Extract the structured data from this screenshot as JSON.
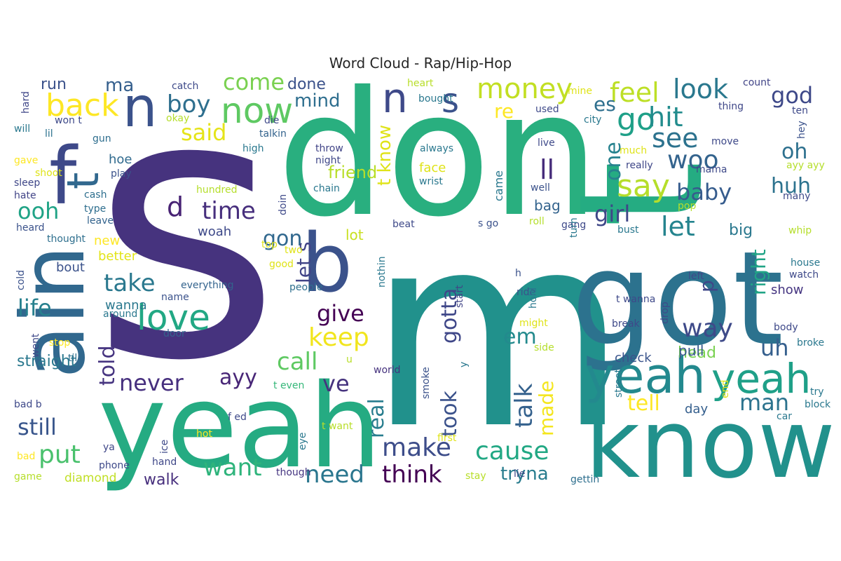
{
  "title": "Word Cloud - Rap/Hip-Hop",
  "chart_data": {
    "type": "wordcloud",
    "title": "Word Cloud - Rap/Hip-Hop",
    "colormap": "viridis",
    "background": "#ffffff",
    "words": [
      {
        "text": "s",
        "weight": 100,
        "color": "#46337e"
      },
      {
        "text": "m",
        "weight": 96,
        "color": "#21918c"
      },
      {
        "text": "don",
        "weight": 74,
        "color": "#29af7f"
      },
      {
        "text": "t",
        "weight": 72,
        "color": "#25ac82"
      },
      {
        "text": "got",
        "weight": 62,
        "color": "#2c728e"
      },
      {
        "text": "yeah",
        "weight": 60,
        "color": "#25ab82"
      },
      {
        "text": "know",
        "weight": 52,
        "color": "#21918c"
      },
      {
        "text": "ain",
        "weight": 50,
        "color": "#31688e"
      },
      {
        "text": "b",
        "weight": 44,
        "color": "#3b528b"
      },
      {
        "text": "n",
        "weight": 42,
        "color": "#3e4989"
      },
      {
        "text": "t",
        "weight": 40,
        "color": "#31688e"
      },
      {
        "text": "f",
        "weight": 40,
        "color": "#3e4989"
      },
      {
        "text": "yeah",
        "weight": 34,
        "color": "#23898e"
      },
      {
        "text": "yeah",
        "weight": 30,
        "color": "#1fa088"
      },
      {
        "text": "now",
        "weight": 26,
        "color": "#5ec962"
      },
      {
        "text": "love",
        "weight": 26,
        "color": "#22a884"
      },
      {
        "text": "back",
        "weight": 24,
        "color": "#fde725"
      },
      {
        "text": "n",
        "weight": 24,
        "color": "#3b528b"
      },
      {
        "text": "s",
        "weight": 24,
        "color": "#3b528b"
      },
      {
        "text": "go",
        "weight": 24,
        "color": "#1fa088"
      },
      {
        "text": "say",
        "weight": 24,
        "color": "#b5de2b"
      },
      {
        "text": "money",
        "weight": 22,
        "color": "#c2df23"
      },
      {
        "text": "feel",
        "weight": 22,
        "color": "#bddf26"
      },
      {
        "text": "look",
        "weight": 22,
        "color": "#2a788e"
      },
      {
        "text": "come",
        "weight": 22,
        "color": "#7ad151"
      },
      {
        "text": "time",
        "weight": 22,
        "color": "#472f7d"
      },
      {
        "text": "boy",
        "weight": 22,
        "color": "#2e6f8e"
      },
      {
        "text": "said",
        "weight": 20,
        "color": "#e5e419"
      },
      {
        "text": "d",
        "weight": 20,
        "color": "#482374"
      },
      {
        "text": "hit",
        "weight": 20,
        "color": "#228c8d"
      },
      {
        "text": "see",
        "weight": 20,
        "color": "#2c728e"
      },
      {
        "text": "woo",
        "weight": 20,
        "color": "#33638d"
      },
      {
        "text": "let",
        "weight": 20,
        "color": "#25848e"
      },
      {
        "text": "baby",
        "weight": 20,
        "color": "#365c8d"
      },
      {
        "text": "god",
        "weight": 20,
        "color": "#3e4989"
      },
      {
        "text": "oh",
        "weight": 20,
        "color": "#2d708e"
      },
      {
        "text": "huh",
        "weight": 18,
        "color": "#2c728e"
      },
      {
        "text": "girl",
        "weight": 18,
        "color": "#3f4788"
      },
      {
        "text": "gon",
        "weight": 18,
        "color": "#31688e"
      },
      {
        "text": "take",
        "weight": 18,
        "color": "#2a788e"
      },
      {
        "text": "life",
        "weight": 18,
        "color": "#27808e"
      },
      {
        "text": "ooh",
        "weight": 18,
        "color": "#20a386"
      },
      {
        "text": "keep",
        "weight": 18,
        "color": "#f1e51d"
      },
      {
        "text": "give",
        "weight": 18,
        "color": "#440154"
      },
      {
        "text": "way",
        "weight": 18,
        "color": "#3e4a89"
      },
      {
        "text": "uh",
        "weight": 18,
        "color": "#355f8d"
      },
      {
        "text": "call",
        "weight": 18,
        "color": "#5ec962"
      },
      {
        "text": "never",
        "weight": 18,
        "color": "#462f7e"
      },
      {
        "text": "ayy",
        "weight": 18,
        "color": "#482677"
      },
      {
        "text": "still",
        "weight": 18,
        "color": "#39568c"
      },
      {
        "text": "put",
        "weight": 18,
        "color": "#4ac16d"
      },
      {
        "text": "want",
        "weight": 18,
        "color": "#2fb47c"
      },
      {
        "text": "make",
        "weight": 18,
        "color": "#3d4d8a"
      },
      {
        "text": "need",
        "weight": 18,
        "color": "#2a768e"
      },
      {
        "text": "think",
        "weight": 18,
        "color": "#440154"
      },
      {
        "text": "cause",
        "weight": 18,
        "color": "#22a884"
      },
      {
        "text": "man",
        "weight": 18,
        "color": "#2c738e"
      },
      {
        "text": "tell",
        "weight": 18,
        "color": "#fde725"
      },
      {
        "text": "talk",
        "weight": 18,
        "color": "#34618d"
      },
      {
        "text": "took",
        "weight": 18,
        "color": "#3b528b"
      },
      {
        "text": "gotta",
        "weight": 18,
        "color": "#3f4788"
      },
      {
        "text": "real",
        "weight": 18,
        "color": "#287d8e"
      },
      {
        "text": "ve",
        "weight": 18,
        "color": "#46337e"
      },
      {
        "text": "em",
        "weight": 16,
        "color": "#238a8d"
      },
      {
        "text": "ll",
        "weight": 16,
        "color": "#472d7b"
      },
      {
        "text": "one",
        "weight": 16,
        "color": "#26828e"
      },
      {
        "text": "right",
        "weight": 16,
        "color": "#20a486"
      },
      {
        "text": "p",
        "weight": 16,
        "color": "#3f4788"
      },
      {
        "text": "told",
        "weight": 16,
        "color": "#463480"
      },
      {
        "text": "let s",
        "weight": 16,
        "color": "#414487"
      },
      {
        "text": "t know",
        "weight": 16,
        "color": "#dfe318"
      },
      {
        "text": "made",
        "weight": 16,
        "color": "#f4e61e"
      },
      {
        "text": "tryna",
        "weight": 16,
        "color": "#287c8e"
      },
      {
        "text": "walk",
        "weight": 14,
        "color": "#472f7d"
      },
      {
        "text": "big",
        "weight": 14,
        "color": "#2a788e"
      },
      {
        "text": "head",
        "weight": 14,
        "color": "#7ad151"
      },
      {
        "text": "straight",
        "weight": 14,
        "color": "#2a788e"
      },
      {
        "text": "pull",
        "weight": 14,
        "color": "#38588c"
      },
      {
        "text": "mind",
        "weight": 14,
        "color": "#2e6e8e"
      },
      {
        "text": "ma",
        "weight": 14,
        "color": "#355f8d"
      },
      {
        "text": "es",
        "weight": 14,
        "color": "#2e6f8e"
      },
      {
        "text": "re",
        "weight": 14,
        "color": "#fde725"
      },
      {
        "text": "friend",
        "weight": 12,
        "color": "#b8de29"
      },
      {
        "text": "done",
        "weight": 12,
        "color": "#3b528b"
      },
      {
        "text": "run",
        "weight": 12,
        "color": "#3b528b"
      },
      {
        "text": "hoe",
        "weight": 12,
        "color": "#306a8e"
      },
      {
        "text": "new",
        "weight": 12,
        "color": "#fde725"
      },
      {
        "text": "wanna",
        "weight": 12,
        "color": "#2a788e"
      },
      {
        "text": "bout",
        "weight": 12,
        "color": "#3b528b"
      },
      {
        "text": "better",
        "weight": 12,
        "color": "#e2e418"
      },
      {
        "text": "woah",
        "weight": 12,
        "color": "#3e4989"
      },
      {
        "text": "face",
        "weight": 12,
        "color": "#dfe318"
      },
      {
        "text": "lot",
        "weight": 12,
        "color": "#c8e020"
      },
      {
        "text": "bag",
        "weight": 12,
        "color": "#33638d"
      },
      {
        "text": "day",
        "weight": 12,
        "color": "#355f8d"
      },
      {
        "text": "show",
        "weight": 11,
        "color": "#453581"
      },
      {
        "text": "diamond",
        "weight": 11,
        "color": "#c0df25"
      },
      {
        "text": "came",
        "weight": 11,
        "color": "#2a788e"
      },
      {
        "text": "check",
        "weight": 10,
        "color": "#3a548c"
      },
      {
        "text": "catch",
        "weight": 10,
        "color": "#3e4a89"
      },
      {
        "text": "heart",
        "weight": 10,
        "color": "#b8de29"
      },
      {
        "text": "count",
        "weight": 10,
        "color": "#414487"
      },
      {
        "text": "hard",
        "weight": 10,
        "color": "#3f4788"
      },
      {
        "text": "won t",
        "weight": 10,
        "color": "#3e4989"
      },
      {
        "text": "lil",
        "weight": 10,
        "color": "#2c728e"
      },
      {
        "text": "will",
        "weight": 10,
        "color": "#2a788e"
      },
      {
        "text": "okay",
        "weight": 10,
        "color": "#b5de2b"
      },
      {
        "text": "gun",
        "weight": 10,
        "color": "#2e6e8e"
      },
      {
        "text": "gave",
        "weight": 10,
        "color": "#fde725"
      },
      {
        "text": "shoot",
        "weight": 10,
        "color": "#dfe318"
      },
      {
        "text": "play",
        "weight": 10,
        "color": "#3b528b"
      },
      {
        "text": "sleep",
        "weight": 10,
        "color": "#3f4788"
      },
      {
        "text": "hate",
        "weight": 10,
        "color": "#414487"
      },
      {
        "text": "cash",
        "weight": 10,
        "color": "#2e6f8e"
      },
      {
        "text": "type",
        "weight": 10,
        "color": "#2e6e8e"
      },
      {
        "text": "leave",
        "weight": 10,
        "color": "#33638d"
      },
      {
        "text": "heard",
        "weight": 10,
        "color": "#3b528b"
      },
      {
        "text": "thought",
        "weight": 10,
        "color": "#2e6f8e"
      },
      {
        "text": "cold",
        "weight": 10,
        "color": "#3b528b"
      },
      {
        "text": "everything",
        "weight": 10,
        "color": "#33638d"
      },
      {
        "text": "name",
        "weight": 10,
        "color": "#3b528b"
      },
      {
        "text": "around",
        "weight": 10,
        "color": "#2a788e"
      },
      {
        "text": "door",
        "weight": 10,
        "color": "#33638d"
      },
      {
        "text": "went",
        "weight": 10,
        "color": "#3e4989"
      },
      {
        "text": "stop",
        "weight": 10,
        "color": "#fde725"
      },
      {
        "text": "til",
        "weight": 10,
        "color": "#2e6e8e"
      },
      {
        "text": "bad b",
        "weight": 10,
        "color": "#3e4989"
      },
      {
        "text": "f ed",
        "weight": 10,
        "color": "#3e4989"
      },
      {
        "text": "t even",
        "weight": 10,
        "color": "#35b779"
      },
      {
        "text": "hot",
        "weight": 10,
        "color": "#fde725"
      },
      {
        "text": "ya",
        "weight": 10,
        "color": "#3f4788"
      },
      {
        "text": "bad",
        "weight": 10,
        "color": "#fde725"
      },
      {
        "text": "phone",
        "weight": 10,
        "color": "#3e4989"
      },
      {
        "text": "ice",
        "weight": 10,
        "color": "#3e4989"
      },
      {
        "text": "hand",
        "weight": 10,
        "color": "#3f4788"
      },
      {
        "text": "game",
        "weight": 10,
        "color": "#b5de2b"
      },
      {
        "text": "though",
        "weight": 10,
        "color": "#453581"
      },
      {
        "text": "eye",
        "weight": 10,
        "color": "#2a788e"
      },
      {
        "text": "t want",
        "weight": 10,
        "color": "#b8de29"
      },
      {
        "text": "first",
        "weight": 10,
        "color": "#dfe318"
      },
      {
        "text": "stay",
        "weight": 10,
        "color": "#b8de29"
      },
      {
        "text": "lie",
        "weight": 10,
        "color": "#3e4989"
      },
      {
        "text": "gettin",
        "weight": 10,
        "color": "#2e6f8e"
      },
      {
        "text": "die",
        "weight": 10,
        "color": "#3e4989"
      },
      {
        "text": "talkin",
        "weight": 10,
        "color": "#33638d"
      },
      {
        "text": "high",
        "weight": 10,
        "color": "#2a788e"
      },
      {
        "text": "throw",
        "weight": 10,
        "color": "#414487"
      },
      {
        "text": "night",
        "weight": 10,
        "color": "#3f4788"
      },
      {
        "text": "chain",
        "weight": 10,
        "color": "#2a788e"
      },
      {
        "text": "hundred",
        "weight": 10,
        "color": "#b5de2b"
      },
      {
        "text": "doin",
        "weight": 10,
        "color": "#3e4989"
      },
      {
        "text": "top",
        "weight": 10,
        "color": "#dfe318"
      },
      {
        "text": "two",
        "weight": 10,
        "color": "#dfe318"
      },
      {
        "text": "good",
        "weight": 10,
        "color": "#dfe318"
      },
      {
        "text": "people",
        "weight": 10,
        "color": "#2e6f8e"
      },
      {
        "text": "nothin",
        "weight": 10,
        "color": "#2a788e"
      },
      {
        "text": "start",
        "weight": 10,
        "color": "#414487"
      },
      {
        "text": "u",
        "weight": 10,
        "color": "#b8de29"
      },
      {
        "text": "world",
        "weight": 10,
        "color": "#46337e"
      },
      {
        "text": "smoke",
        "weight": 10,
        "color": "#3b528b"
      },
      {
        "text": "y",
        "weight": 10,
        "color": "#2a788e"
      },
      {
        "text": "bought",
        "weight": 10,
        "color": "#2a788e"
      },
      {
        "text": "always",
        "weight": 10,
        "color": "#2a788e"
      },
      {
        "text": "wrist",
        "weight": 10,
        "color": "#2a788e"
      },
      {
        "text": "beat",
        "weight": 10,
        "color": "#3e4989"
      },
      {
        "text": "s go",
        "weight": 10,
        "color": "#3b528b"
      },
      {
        "text": "h",
        "weight": 10,
        "color": "#3b528b"
      },
      {
        "text": "ride",
        "weight": 10,
        "color": "#3b528b"
      },
      {
        "text": "hold",
        "weight": 10,
        "color": "#2a788e"
      },
      {
        "text": "might",
        "weight": 10,
        "color": "#dfe318"
      },
      {
        "text": "side",
        "weight": 10,
        "color": "#b5de2b"
      },
      {
        "text": "used",
        "weight": 10,
        "color": "#3e4989"
      },
      {
        "text": "mine",
        "weight": 10,
        "color": "#dfe318"
      },
      {
        "text": "live",
        "weight": 10,
        "color": "#3e4989"
      },
      {
        "text": "city",
        "weight": 10,
        "color": "#2a788e"
      },
      {
        "text": "much",
        "weight": 10,
        "color": "#dfe318"
      },
      {
        "text": "really",
        "weight": 10,
        "color": "#3f4788"
      },
      {
        "text": "well",
        "weight": 10,
        "color": "#3b528b"
      },
      {
        "text": "roll",
        "weight": 10,
        "color": "#b5de2b"
      },
      {
        "text": "gang",
        "weight": 10,
        "color": "#3e4989"
      },
      {
        "text": "turn",
        "weight": 10,
        "color": "#2a788e"
      },
      {
        "text": "bust",
        "weight": 10,
        "color": "#2a788e"
      },
      {
        "text": "thing",
        "weight": 10,
        "color": "#3f4788"
      },
      {
        "text": "ten",
        "weight": 10,
        "color": "#3e4989"
      },
      {
        "text": "hey",
        "weight": 10,
        "color": "#3b528b"
      },
      {
        "text": "move",
        "weight": 10,
        "color": "#3e4989"
      },
      {
        "text": "ayy ayy",
        "weight": 10,
        "color": "#b5de2b"
      },
      {
        "text": "mama",
        "weight": 10,
        "color": "#3e4989"
      },
      {
        "text": "many",
        "weight": 10,
        "color": "#3e4989"
      },
      {
        "text": "pop",
        "weight": 10,
        "color": "#b5de2b"
      },
      {
        "text": "whip",
        "weight": 10,
        "color": "#b5de2b"
      },
      {
        "text": "house",
        "weight": 10,
        "color": "#2a788e"
      },
      {
        "text": "left",
        "weight": 10,
        "color": "#3e4989"
      },
      {
        "text": "watch",
        "weight": 10,
        "color": "#3e4989"
      },
      {
        "text": "t wanna",
        "weight": 10,
        "color": "#3e4989"
      },
      {
        "text": "drop",
        "weight": 10,
        "color": "#3e4989"
      },
      {
        "text": "break",
        "weight": 10,
        "color": "#3e4989"
      },
      {
        "text": "body",
        "weight": 10,
        "color": "#3e4989"
      },
      {
        "text": "broke",
        "weight": 10,
        "color": "#2a788e"
      },
      {
        "text": "end",
        "weight": 10,
        "color": "#dfe318"
      },
      {
        "text": "try",
        "weight": 10,
        "color": "#2a788e"
      },
      {
        "text": "block",
        "weight": 10,
        "color": "#2a788e"
      },
      {
        "text": "street",
        "weight": 10,
        "color": "#2a788e"
      },
      {
        "text": "car",
        "weight": 10,
        "color": "#2a788e"
      }
    ]
  }
}
